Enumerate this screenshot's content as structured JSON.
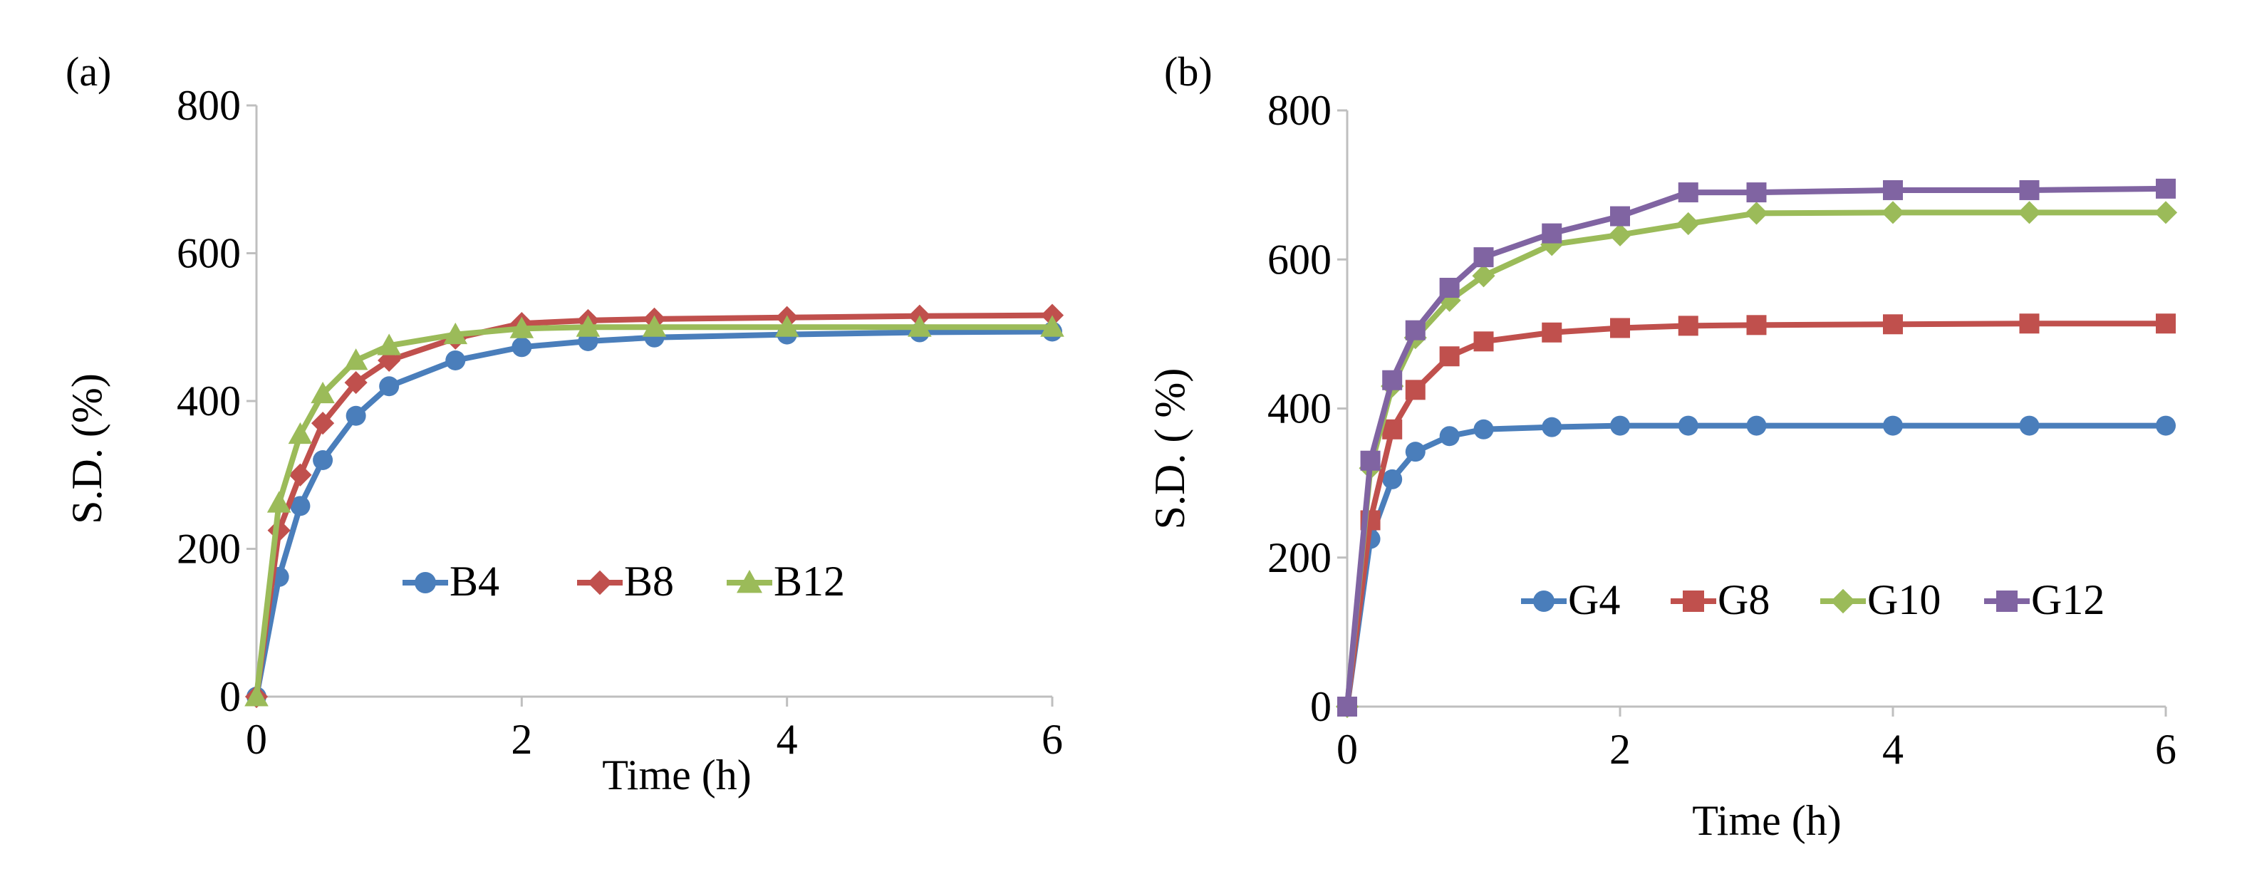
{
  "chart_data": [
    {
      "type": "line",
      "panel_label": "(a)",
      "xlabel": "Time (h)",
      "ylabel": "S.D. (%)",
      "xlim": [
        0,
        6
      ],
      "ylim": [
        0,
        800
      ],
      "x_ticks": [
        "0",
        "2",
        "4",
        "6"
      ],
      "y_ticks": [
        "0",
        "200",
        "400",
        "600",
        "800"
      ],
      "grid": false,
      "legend_position": "center",
      "series": [
        {
          "name": "B4",
          "color": "#4a7ebb",
          "marker": "circle",
          "x": [
            0,
            0.17,
            0.33,
            0.5,
            0.75,
            1,
            1.5,
            2,
            2.5,
            3,
            4,
            5,
            6
          ],
          "values": [
            0,
            162,
            258,
            320,
            380,
            420,
            455,
            473,
            481,
            486,
            490,
            493,
            494
          ]
        },
        {
          "name": "B8",
          "color": "#c0504d",
          "marker": "diamond",
          "x": [
            0,
            0.17,
            0.33,
            0.5,
            0.75,
            1,
            1.5,
            2,
            2.5,
            3,
            4,
            5,
            6
          ],
          "values": [
            0,
            225,
            300,
            370,
            425,
            455,
            485,
            505,
            509,
            511,
            513,
            515,
            516
          ]
        },
        {
          "name": "B12",
          "color": "#9bbb59",
          "marker": "triangle",
          "x": [
            0,
            0.17,
            0.33,
            0.5,
            0.75,
            1,
            1.5,
            2,
            2.5,
            3,
            4,
            5,
            6
          ],
          "values": [
            0,
            262,
            355,
            410,
            455,
            475,
            490,
            498,
            500,
            500,
            500,
            500,
            500
          ]
        }
      ]
    },
    {
      "type": "line",
      "panel_label": "(b)",
      "xlabel": "Time (h)",
      "ylabel": "S.D. ( %)",
      "xlim": [
        0,
        6
      ],
      "ylim": [
        0,
        800
      ],
      "x_ticks": [
        "0",
        "2",
        "4",
        "6"
      ],
      "y_ticks": [
        "0",
        "200",
        "400",
        "600",
        "800"
      ],
      "grid": false,
      "legend_position": "bottom-center",
      "series": [
        {
          "name": "G4",
          "color": "#4a7ebb",
          "marker": "circle",
          "x": [
            0,
            0.17,
            0.33,
            0.5,
            0.75,
            1,
            1.5,
            2,
            2.5,
            3,
            4,
            5,
            6
          ],
          "values": [
            0,
            225,
            305,
            342,
            363,
            372,
            375,
            377,
            377,
            377,
            377,
            377,
            377
          ]
        },
        {
          "name": "G8",
          "color": "#c0504d",
          "marker": "square",
          "x": [
            0,
            0.17,
            0.33,
            0.5,
            0.75,
            1,
            1.5,
            2,
            2.5,
            3,
            4,
            5,
            6
          ],
          "values": [
            0,
            250,
            372,
            425,
            470,
            490,
            502,
            508,
            511,
            512,
            513,
            514,
            514
          ]
        },
        {
          "name": "G10",
          "color": "#9bbb59",
          "marker": "diamond",
          "x": [
            0,
            0.17,
            0.33,
            0.5,
            0.75,
            1,
            1.5,
            2,
            2.5,
            3,
            4,
            5,
            6
          ],
          "values": [
            0,
            320,
            430,
            495,
            545,
            578,
            620,
            633,
            648,
            662,
            663,
            663,
            663
          ]
        },
        {
          "name": "G12",
          "color": "#8064a2",
          "marker": "square",
          "x": [
            0,
            0.17,
            0.33,
            0.5,
            0.75,
            1,
            1.5,
            2,
            2.5,
            3,
            4,
            5,
            6
          ],
          "values": [
            0,
            330,
            438,
            505,
            562,
            603,
            635,
            658,
            690,
            690,
            693,
            693,
            695
          ]
        }
      ]
    }
  ]
}
